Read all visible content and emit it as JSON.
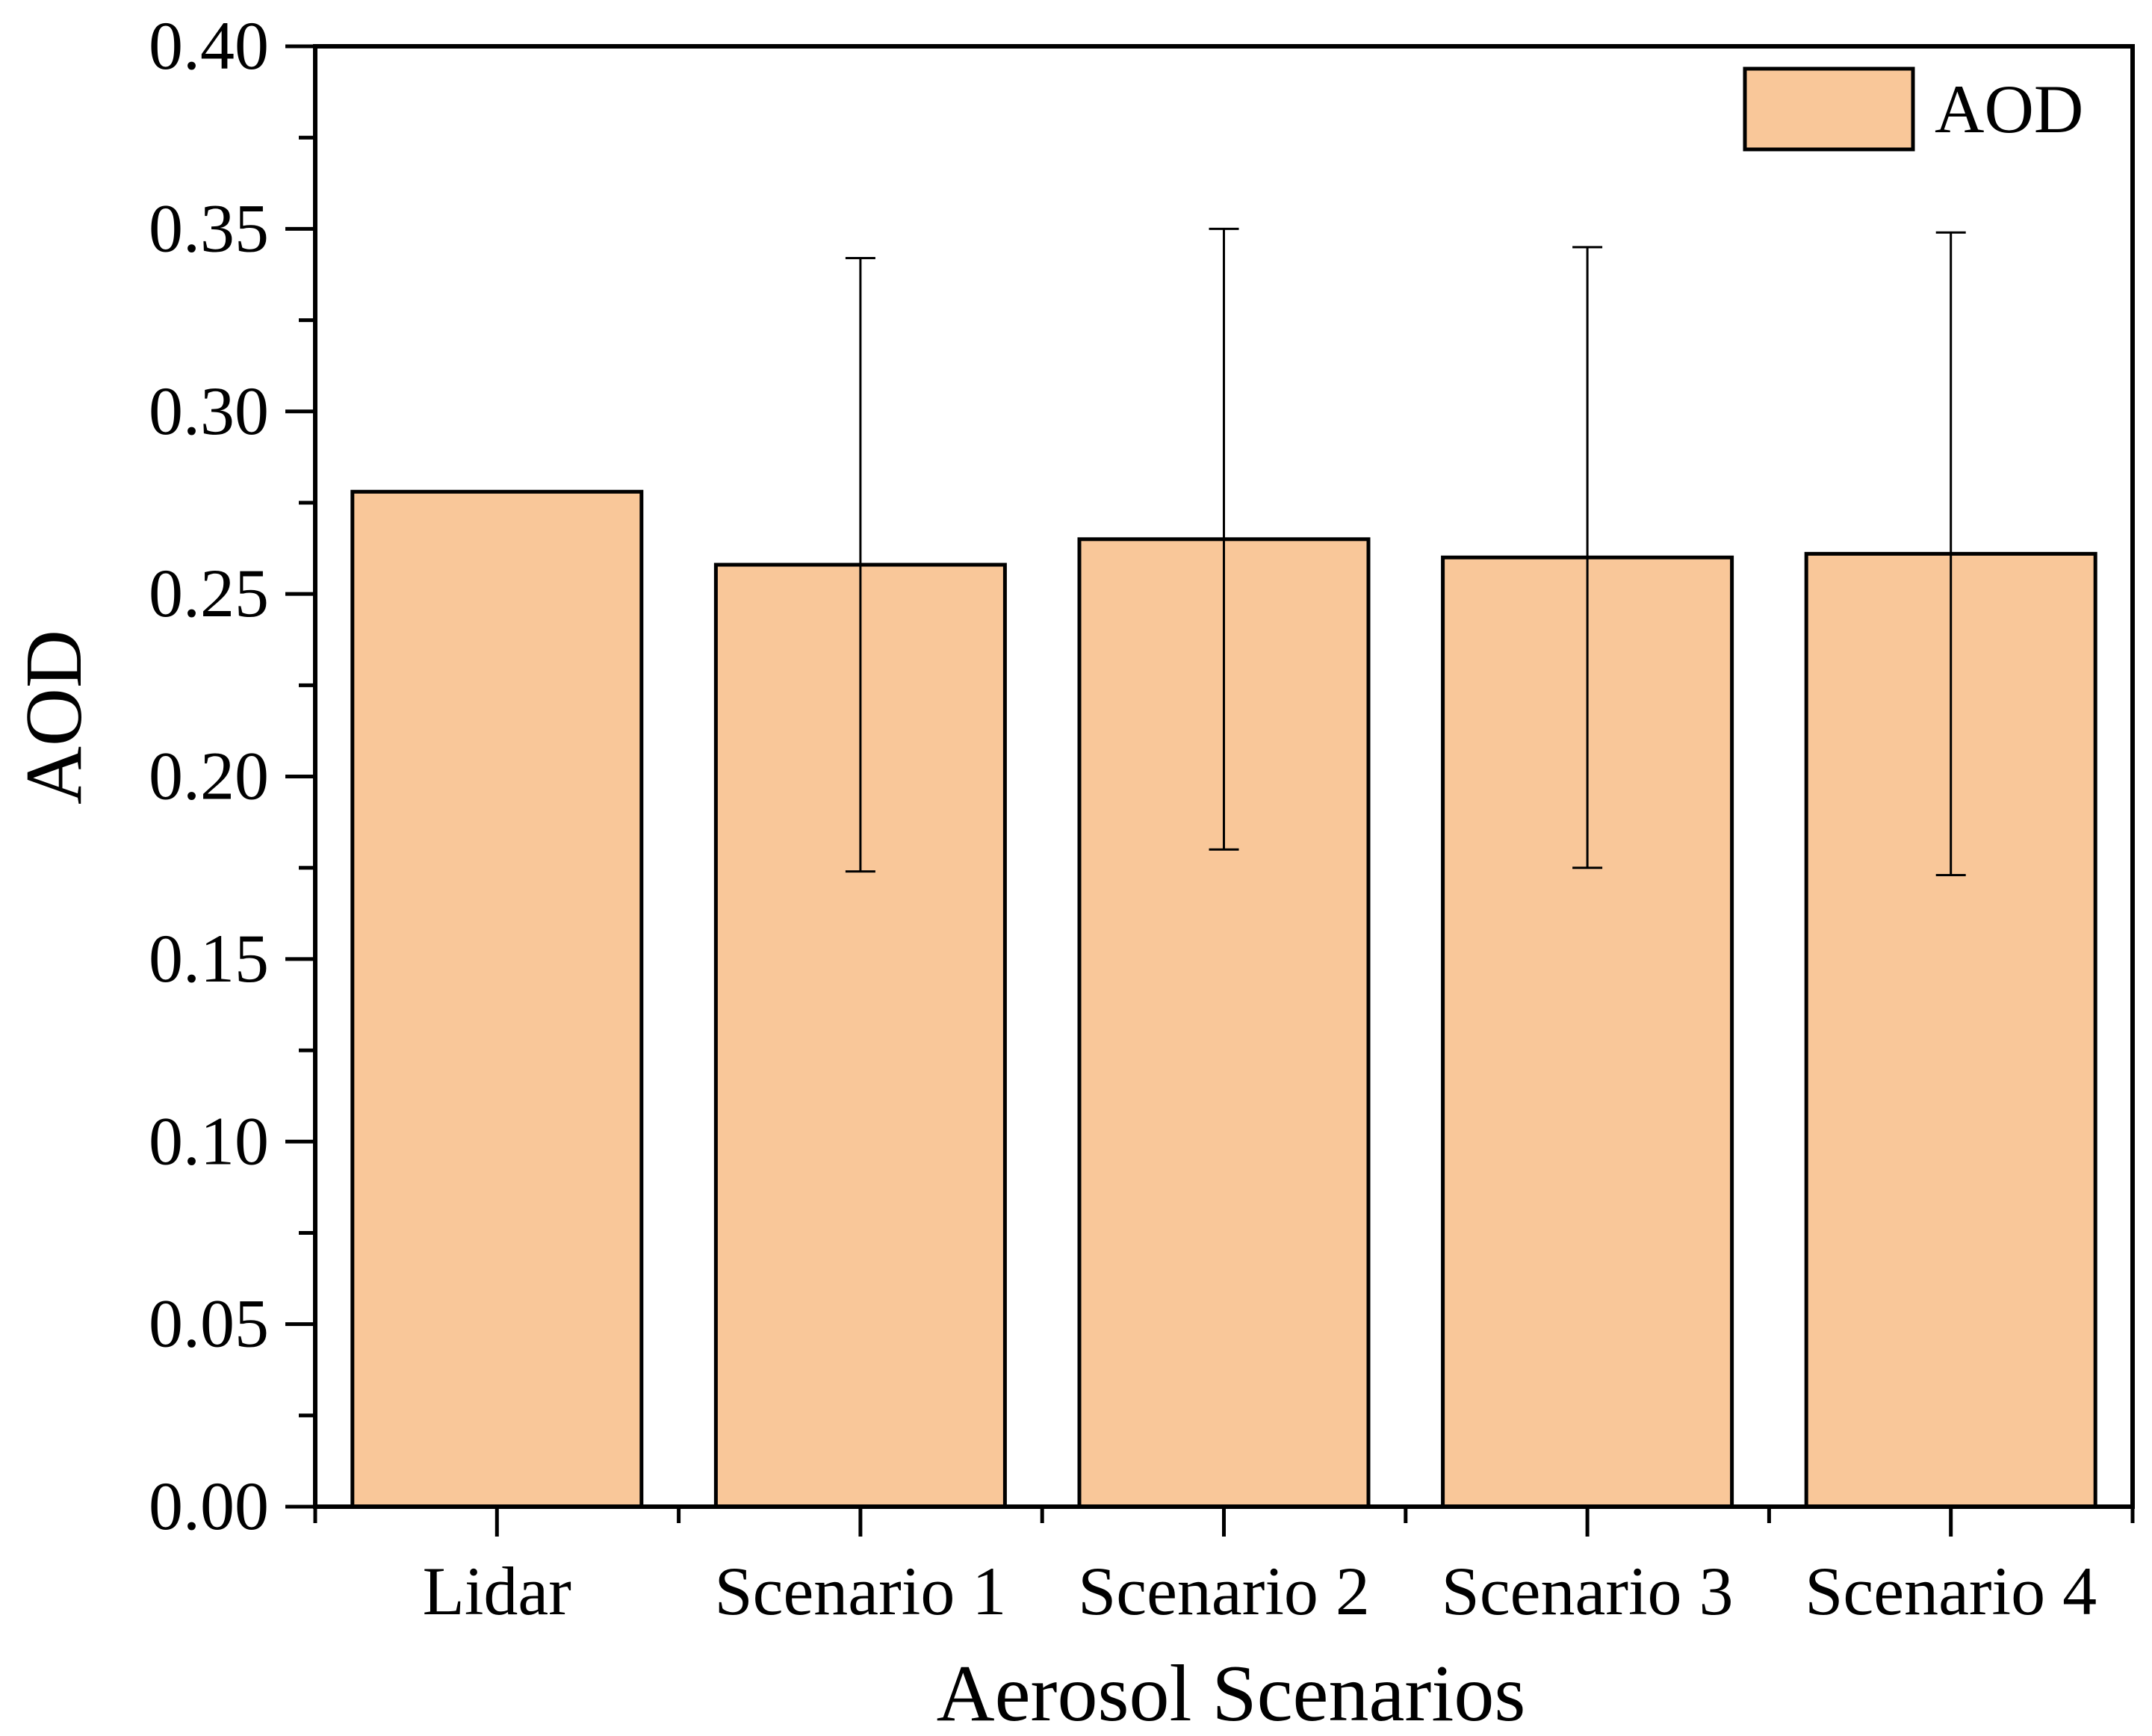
{
  "chart_data": {
    "type": "bar",
    "title": "",
    "xlabel": "Aerosol Scenarios",
    "ylabel": "AOD",
    "categories": [
      "Lidar",
      "Scenario 1",
      "Scenario 2",
      "Scenario 3",
      "Scenario 4"
    ],
    "series": [
      {
        "name": "AOD",
        "color": "#F9C799",
        "values": [
          0.278,
          0.258,
          0.265,
          0.26,
          0.261
        ],
        "error_low": [
          null,
          0.174,
          0.18,
          0.175,
          0.173
        ],
        "error_high": [
          null,
          0.342,
          0.35,
          0.345,
          0.349
        ]
      }
    ],
    "ylim": [
      0,
      0.4
    ],
    "yticks": [
      "0.00",
      "0.05",
      "0.10",
      "0.15",
      "0.20",
      "0.25",
      "0.30",
      "0.35",
      "0.40"
    ],
    "grid": false,
    "legend": {
      "position": "top-right",
      "entries": [
        "AOD"
      ]
    }
  }
}
